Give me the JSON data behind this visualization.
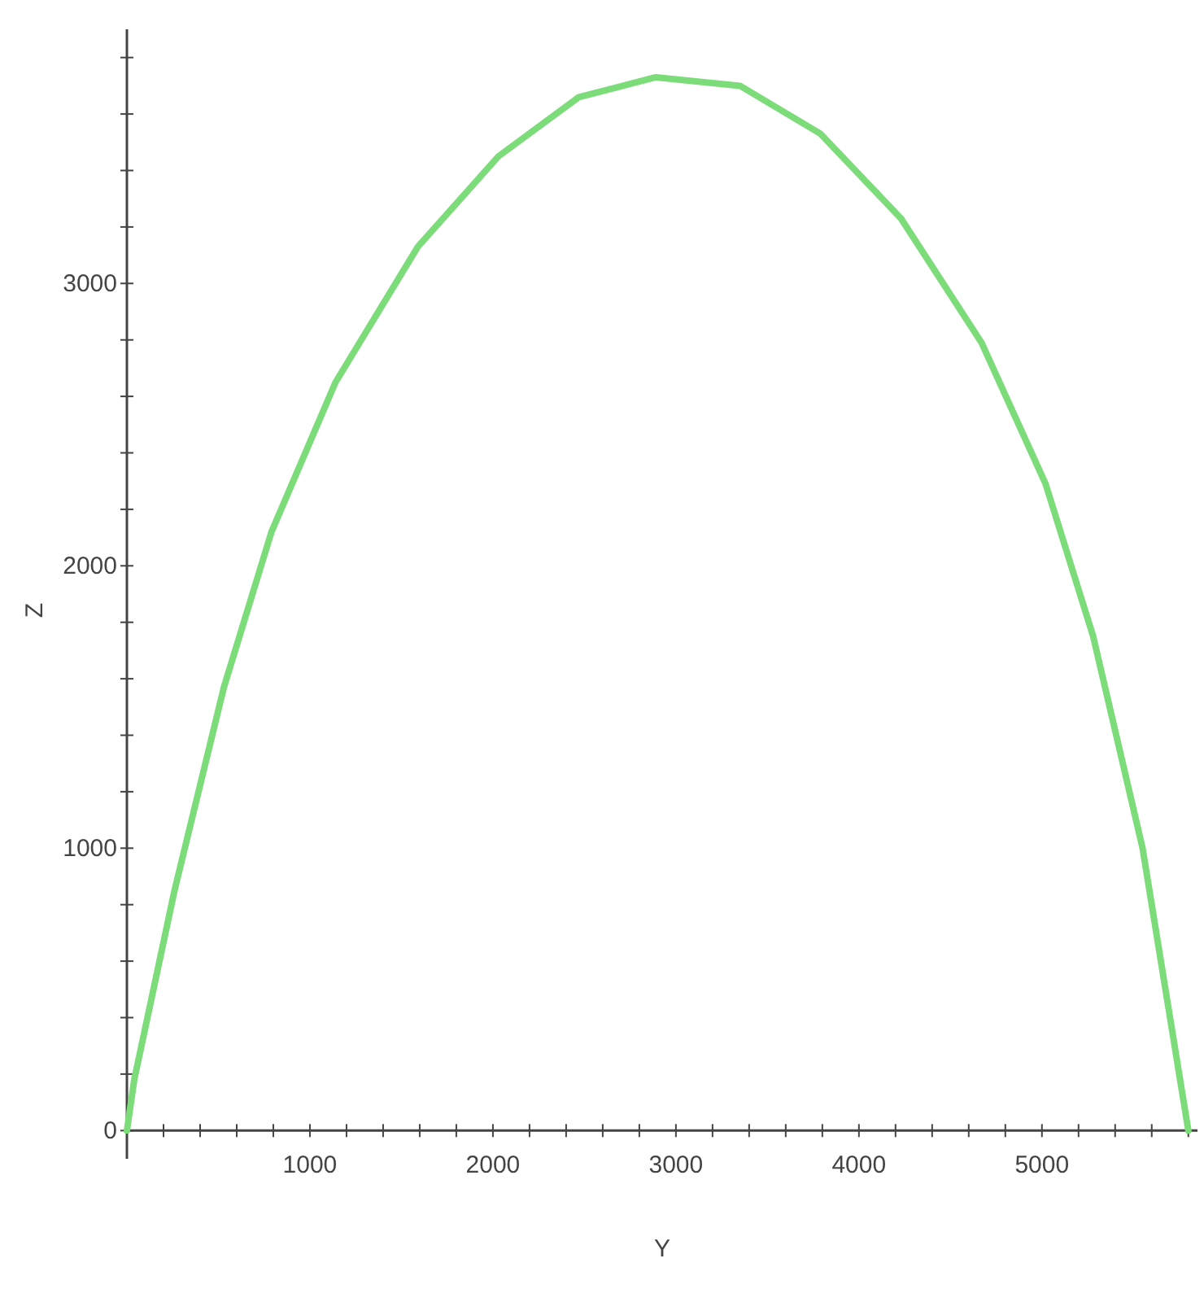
{
  "chart_data": {
    "type": "line",
    "xlabel": "Y",
    "ylabel": "Z",
    "xlim": [
      0,
      5850
    ],
    "ylim": [
      -100,
      3900
    ],
    "xticks": [
      {
        "value": 0,
        "label": null
      },
      {
        "value": 200,
        "label": null
      },
      {
        "value": 400,
        "label": null
      },
      {
        "value": 600,
        "label": null
      },
      {
        "value": 800,
        "label": null
      },
      1000,
      {
        "value": 1200,
        "label": null
      },
      {
        "value": 1400,
        "label": null
      },
      {
        "value": 1600,
        "label": null
      },
      {
        "value": 1800,
        "label": null
      },
      2000,
      {
        "value": 2200,
        "label": null
      },
      {
        "value": 2400,
        "label": null
      },
      {
        "value": 2600,
        "label": null
      },
      {
        "value": 2800,
        "label": null
      },
      3000,
      {
        "value": 3200,
        "label": null
      },
      {
        "value": 3400,
        "label": null
      },
      {
        "value": 3600,
        "label": null
      },
      {
        "value": 3800,
        "label": null
      },
      4000,
      {
        "value": 4200,
        "label": null
      },
      {
        "value": 4400,
        "label": null
      },
      {
        "value": 4600,
        "label": null
      },
      {
        "value": 4800,
        "label": null
      },
      5000,
      {
        "value": 5200,
        "label": null
      },
      {
        "value": 5400,
        "label": null
      },
      {
        "value": 5600,
        "label": null
      },
      {
        "value": 5800,
        "label": null
      }
    ],
    "yticks": [
      0,
      {
        "value": 200,
        "label": null
      },
      {
        "value": 400,
        "label": null
      },
      {
        "value": 600,
        "label": null
      },
      {
        "value": 800,
        "label": null
      },
      1000,
      {
        "value": 1200,
        "label": null
      },
      {
        "value": 1400,
        "label": null
      },
      {
        "value": 1600,
        "label": null
      },
      {
        "value": 1800,
        "label": null
      },
      2000,
      {
        "value": 2200,
        "label": null
      },
      {
        "value": 2400,
        "label": null
      },
      {
        "value": 2600,
        "label": null
      },
      {
        "value": 2800,
        "label": null
      },
      3000,
      {
        "value": 3200,
        "label": null
      },
      {
        "value": 3400,
        "label": null
      },
      {
        "value": 3600,
        "label": null
      },
      {
        "value": 3800,
        "label": null
      }
    ],
    "grid": false,
    "marker": "none",
    "line_style": "solid",
    "series": [
      {
        "color": "#7ddc7a",
        "x": [
          0,
          40,
          260,
          530,
          790,
          1140,
          1590,
          2030,
          2470,
          2890,
          3350,
          3790,
          4230,
          4670,
          5020,
          5280,
          5550,
          5800
        ],
        "values": [
          0,
          180,
          850,
          1570,
          2120,
          2650,
          3130,
          3450,
          3660,
          3730,
          3700,
          3530,
          3230,
          2790,
          2290,
          1750,
          1000,
          0
        ]
      }
    ]
  }
}
